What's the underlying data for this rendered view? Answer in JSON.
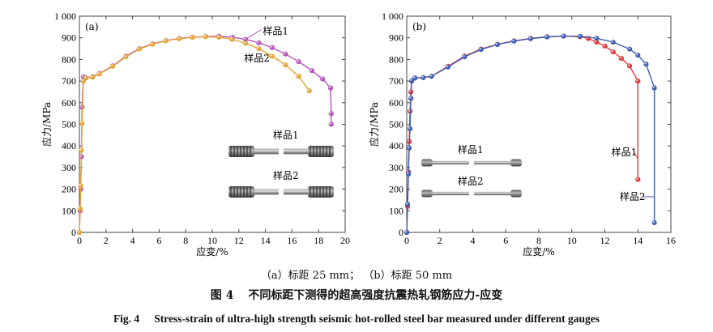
{
  "sub_caption_a": "（a）标距 25 mm；",
  "sub_caption_b": "（b）标距 50 mm",
  "figure_label_zh": "图 4",
  "figure_title_zh": "不同标距下测得的超高强度抗震热轧钢筋应力-应变",
  "figure_label_en": "Fig. 4",
  "figure_title_en": "Stress-strain of ultra-high strength seismic hot-rolled steel bar measured under different gauges",
  "colors": {
    "a_sample1": "#b455b9",
    "a_sample2": "#e3a535",
    "b_sample1": "#e53838",
    "b_sample2": "#3d5fb5",
    "bar_dark": "#6e6e6e",
    "bar_light": "#c6c6c6"
  },
  "chart_data": [
    {
      "type": "line",
      "panel_label": "(a)",
      "xlabel": "应变/%",
      "ylabel": "应力/MPa",
      "xlim": [
        0,
        20
      ],
      "ylim": [
        0,
        1000
      ],
      "x_ticks": [
        "0",
        "2",
        "4",
        "6",
        "8",
        "10",
        "12",
        "14",
        "16",
        "18",
        "20"
      ],
      "y_ticks": [
        "0",
        "100",
        "200",
        "300",
        "400",
        "500",
        "600",
        "700",
        "800",
        "900",
        "1 000"
      ],
      "inset_labels": [
        "样品1",
        "样品2"
      ],
      "series": [
        {
          "name": "样品1",
          "color_key": "a_sample1",
          "label_pos": [
            13.8,
            915
          ],
          "points": [
            [
              0,
              0
            ],
            [
              0.05,
              100
            ],
            [
              0.1,
              200
            ],
            [
              0.15,
              350
            ],
            [
              0.2,
              580
            ],
            [
              0.3,
              720
            ],
            [
              0.5,
              715
            ],
            [
              1.0,
              720
            ],
            [
              1.5,
              735
            ],
            [
              2.5,
              770
            ],
            [
              3.5,
              815
            ],
            [
              4.5,
              850
            ],
            [
              5.5,
              872
            ],
            [
              6.5,
              887
            ],
            [
              7.5,
              897
            ],
            [
              8.5,
              903
            ],
            [
              9.5,
              906
            ],
            [
              10.5,
              907
            ],
            [
              11.5,
              903
            ],
            [
              12.5,
              893
            ],
            [
              13.5,
              877
            ],
            [
              14.5,
              855
            ],
            [
              15.5,
              825
            ],
            [
              16.5,
              790
            ],
            [
              17.5,
              748
            ],
            [
              18.3,
              710
            ],
            [
              18.9,
              668
            ],
            [
              18.95,
              550
            ],
            [
              18.95,
              500
            ]
          ]
        },
        {
          "name": "样品2",
          "color_key": "a_sample2",
          "label_pos": [
            12.4,
            790
          ],
          "points": [
            [
              0,
              0
            ],
            [
              0.05,
              110
            ],
            [
              0.1,
              215
            ],
            [
              0.15,
              380
            ],
            [
              0.2,
              505
            ],
            [
              0.3,
              700
            ],
            [
              0.5,
              714
            ],
            [
              1.0,
              718
            ],
            [
              1.5,
              733
            ],
            [
              2.5,
              768
            ],
            [
              3.5,
              812
            ],
            [
              4.5,
              848
            ],
            [
              5.5,
              870
            ],
            [
              6.5,
              886
            ],
            [
              7.5,
              896
            ],
            [
              8.5,
              902
            ],
            [
              9.5,
              905
            ],
            [
              10.5,
              903
            ],
            [
              11.5,
              893
            ],
            [
              12.5,
              875
            ],
            [
              13.5,
              850
            ],
            [
              14.5,
              815
            ],
            [
              15.5,
              775
            ],
            [
              16.5,
              722
            ],
            [
              17.3,
              655
            ]
          ]
        }
      ]
    },
    {
      "type": "line",
      "panel_label": "(b)",
      "xlabel": "应变/%",
      "ylabel": "应力/MPa",
      "xlim": [
        0,
        16
      ],
      "ylim": [
        0,
        1000
      ],
      "x_ticks": [
        "0",
        "2",
        "4",
        "6",
        "8",
        "10",
        "12",
        "14",
        "16"
      ],
      "y_ticks": [
        "0",
        "100",
        "200",
        "300",
        "400",
        "500",
        "600",
        "700",
        "800",
        "900",
        "1 000"
      ],
      "inset_labels": [
        "样品1",
        "样品2"
      ],
      "series": [
        {
          "name": "样品1",
          "color_key": "b_sample1",
          "label_pos": [
            12.4,
            355
          ],
          "points": [
            [
              0,
              0
            ],
            [
              0.05,
              120
            ],
            [
              0.1,
              280
            ],
            [
              0.15,
              420
            ],
            [
              0.2,
              560
            ],
            [
              0.25,
              650
            ],
            [
              0.3,
              700
            ],
            [
              0.5,
              714
            ],
            [
              1.0,
              716
            ],
            [
              1.5,
              722
            ],
            [
              2.5,
              768
            ],
            [
              3.5,
              815
            ],
            [
              4.5,
              848
            ],
            [
              5.5,
              870
            ],
            [
              6.5,
              886
            ],
            [
              7.5,
              897
            ],
            [
              8.5,
              905
            ],
            [
              9.5,
              908
            ],
            [
              10.5,
              905
            ],
            [
              11.0,
              897
            ],
            [
              11.5,
              880
            ],
            [
              12.0,
              862
            ],
            [
              12.5,
              835
            ],
            [
              13.0,
              805
            ],
            [
              13.5,
              770
            ],
            [
              14.0,
              700
            ],
            [
              14.0,
              245
            ]
          ]
        },
        {
          "name": "样品2",
          "color_key": "b_sample2",
          "label_pos": [
            12.9,
            150
          ],
          "points": [
            [
              0,
              0
            ],
            [
              0.05,
              130
            ],
            [
              0.1,
              270
            ],
            [
              0.15,
              390
            ],
            [
              0.2,
              480
            ],
            [
              0.25,
              620
            ],
            [
              0.3,
              702
            ],
            [
              0.5,
              714
            ],
            [
              1.0,
              716
            ],
            [
              1.5,
              722
            ],
            [
              2.5,
              765
            ],
            [
              3.5,
              812
            ],
            [
              4.5,
              846
            ],
            [
              5.5,
              869
            ],
            [
              6.5,
              885
            ],
            [
              7.5,
              896
            ],
            [
              8.5,
              904
            ],
            [
              9.5,
              908
            ],
            [
              10.5,
              907
            ],
            [
              11.5,
              898
            ],
            [
              12.5,
              880
            ],
            [
              13.5,
              848
            ],
            [
              14.0,
              820
            ],
            [
              14.5,
              778
            ],
            [
              15.0,
              668
            ],
            [
              15.0,
              45
            ]
          ]
        }
      ]
    }
  ]
}
